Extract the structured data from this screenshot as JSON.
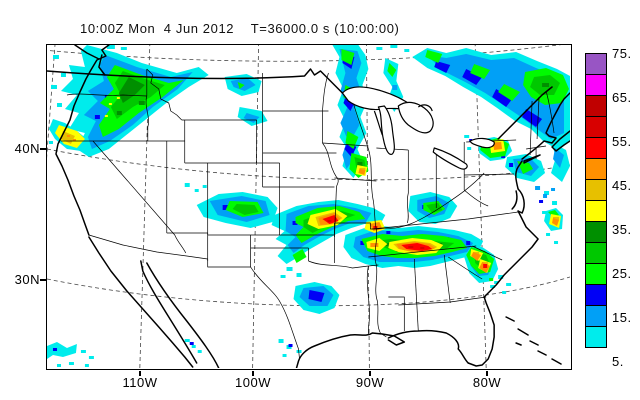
{
  "header": {
    "title": "10:00Z Mon  4 Jun 2012    T=36000.0 s (10:00:00)"
  },
  "axes": {
    "y_ticks": [
      "40N",
      "30N"
    ],
    "x_ticks": [
      "110W",
      "100W",
      "90W",
      "80W"
    ]
  },
  "colorbar": {
    "tick_labels": [
      "75.",
      "65.",
      "55.",
      "45.",
      "35.",
      "25.",
      "15.",
      "5."
    ],
    "colors_top_to_bottom": [
      "#9855C4",
      "#FC00FC",
      "#C00000",
      "#D80000",
      "#FF0000",
      "#FF9000",
      "#E7C000",
      "#FFFF00",
      "#008F00",
      "#00C800",
      "#00FB00",
      "#0000F6",
      "#01A0F6",
      "#00ECEC"
    ]
  },
  "chart_data": {
    "type": "heatmap",
    "title": "10:00Z Mon  4 Jun 2012    T=36000.0 s (10:00:00)",
    "valid_time_label": "10:00Z Mon  4 Jun 2012",
    "model_time_label": "T=36000.0 s (10:00:00)",
    "x_axis": {
      "tick_labels": [
        "110W",
        "100W",
        "90W",
        "80W"
      ]
    },
    "y_axis": {
      "tick_labels": [
        "40N",
        "30N"
      ]
    },
    "legend_position": "right",
    "grid": "dashed lat-lon graticule",
    "basemap": "US state borders, coastlines, Great Lakes",
    "color_scale": {
      "labeled_levels": [
        5,
        15,
        25,
        35,
        45,
        55,
        65,
        75
      ],
      "bin_edges": [
        5,
        10,
        15,
        20,
        25,
        30,
        35,
        40,
        45,
        50,
        55,
        60,
        65,
        70,
        75
      ],
      "colors_low_to_high": [
        "#00ECEC",
        "#01A0F6",
        "#0000F6",
        "#00FB00",
        "#00C800",
        "#008F00",
        "#FFFF00",
        "#E7C000",
        "#FF9000",
        "#FF0000",
        "#D80000",
        "#C00000",
        "#FC00FC",
        "#9855C4"
      ]
    },
    "regions": [
      {
        "area": "Pacific Northwest (BC/Washington/Oregon coast)",
        "coverage": "large NW-SE band",
        "max_level": 45
      },
      {
        "area": "offshore Pacific, southwest corner",
        "coverage": "scattered specks",
        "max_level": 15
      },
      {
        "area": "central Idaho",
        "coverage": "small cluster",
        "max_level": 15
      },
      {
        "area": "eastern Montana / western North Dakota",
        "coverage": "small cluster",
        "max_level": 20
      },
      {
        "area": "Nevada/Utah basin",
        "coverage": "isolated specks",
        "max_level": 10
      },
      {
        "area": "Colorado/Kansas border",
        "coverage": "small cluster",
        "max_level": 30
      },
      {
        "area": "Minnesota into Wisconsin",
        "coverage": "narrow north-south band",
        "max_level": 45
      },
      {
        "area": "Ontario / Quebec / northern New England",
        "coverage": "large diagonal band",
        "max_level": 35
      },
      {
        "area": "Maine / New Brunswick",
        "coverage": "dense green patch",
        "max_level": 30
      },
      {
        "area": "central Oklahoma / southern Kansas",
        "coverage": "convective cluster",
        "max_level": 60
      },
      {
        "area": "Arkansas / Tennessee valley",
        "coverage": "east-west convective line",
        "max_level": 60
      },
      {
        "area": "Kentucky / southern Indiana",
        "coverage": "cluster",
        "max_level": 30
      },
      {
        "area": "central Pennsylvania",
        "coverage": "small cell",
        "max_level": 45
      },
      {
        "area": "New Jersey / Delmarva",
        "coverage": "cluster",
        "max_level": 30
      },
      {
        "area": "offshore Atlantic",
        "coverage": "isolated cells",
        "max_level": 45
      },
      {
        "area": "Georgia / Carolinas",
        "coverage": "cells with orange-red cores",
        "max_level": 55
      },
      {
        "area": "north-central Texas",
        "coverage": "small cluster",
        "max_level": 20
      },
      {
        "area": "south Texas / northeast Mexico coast",
        "coverage": "specks",
        "max_level": 15
      },
      {
        "area": "Florida gulf coast",
        "coverage": "specks",
        "max_level": 25
      }
    ]
  }
}
